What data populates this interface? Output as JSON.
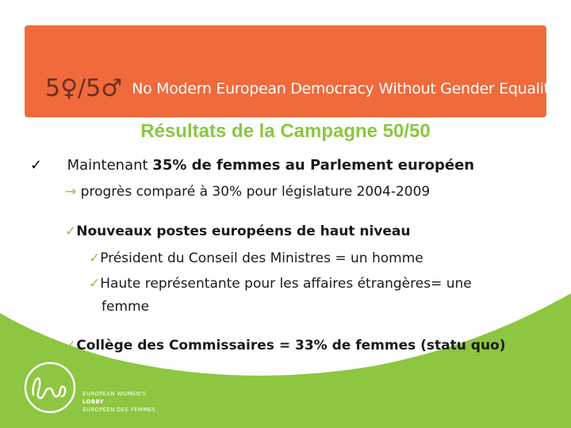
{
  "banner": {
    "logo_text": "5♀/5♂",
    "slogan": "No Modern European Democracy Without Gender Equality"
  },
  "title": "Résultats de la Campagne 50/50",
  "lines": {
    "l1_pre": "Maintenant ",
    "l1_bold": "35% de femmes au Parlement européen",
    "l2_arrow": "→",
    "l2_text": "progrès comparé à 30%  pour législature 2004-2009",
    "l3": "Nouveaux postes européens de haut niveau",
    "l4": "Président du Conseil des Ministres = un homme",
    "l5": "Haute représentante pour les affaires étrangères= une",
    "l6": "femme",
    "l7": "Collège des Commissaires = 33% de femmes (statu quo)"
  },
  "footer": {
    "line1": "EUROPEAN WOMEN'S",
    "line2": "LOBBY",
    "line3": "EUROPÉEN DES FEMMES"
  },
  "colors": {
    "banner": "#f06a3c",
    "accent_green": "#8dc641",
    "text": "#1a1a1a"
  }
}
